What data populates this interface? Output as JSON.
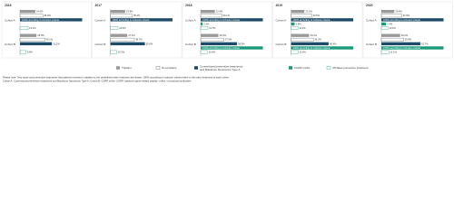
{
  "chart_data": [
    {
      "type": "bar",
      "title": "2016",
      "categories": [
        "Cohort A",
        "Cohort B"
      ],
      "xlim": [
        0,
        100
      ],
      "series": [
        {
          "name": "Triptans",
          "color": "#9a9a9a",
          "values": [
            24.6,
            26.5
          ],
          "value_labels": [
            "24.6%",
            "26.5%"
          ]
        },
        {
          "name": "Non-triptans",
          "color": "#ffffff",
          "values": [
            36.9,
            40.1
          ],
          "value_labels": [
            "36.9%",
            "40.1%"
          ]
        },
        {
          "name": "Conventional preventive treatments and Botulinum Neurotoxin Type A",
          "color": "#1d4a66",
          "values": [
            100,
            51.2
          ],
          "value_labels": [
            "100% according to inclusion criteria",
            "51.2%"
          ]
        },
        {
          "name": "CGRP mAbs",
          "color": "#1a9a7a",
          "values": [
            null,
            null
          ],
          "value_labels": [
            null,
            null
          ]
        },
        {
          "name": "Off-label preventive treatment",
          "color": "#ffffff",
          "values": [
            13.1,
            9.8
          ],
          "value_labels": [
            "13.1%",
            "9.8%"
          ]
        }
      ]
    },
    {
      "type": "bar",
      "title": "2017",
      "categories": [
        "Cohort A",
        "Cohort B"
      ],
      "xlim": [
        0,
        100
      ],
      "series": [
        {
          "name": "Triptans",
          "color": "#9a9a9a",
          "values": [
            23.8,
            27.2
          ],
          "value_labels": [
            "23.8%",
            "27.2%"
          ]
        },
        {
          "name": "Non-triptans",
          "color": "#ffffff",
          "values": [
            35.4,
            38.7
          ],
          "value_labels": [
            "35.4%",
            "38.7%"
          ]
        },
        {
          "name": "Conventional preventive treatments and Botulinum Neurotoxin Type A",
          "color": "#1d4a66",
          "values": [
            100,
            55.6
          ],
          "value_labels": [
            "100% according to inclusion criteria",
            "55.6%"
          ]
        },
        {
          "name": "CGRP mAbs",
          "color": "#1a9a7a",
          "values": [
            null,
            null
          ],
          "value_labels": [
            null,
            null
          ]
        },
        {
          "name": "Off-label preventive treatment",
          "color": "#ffffff",
          "values": [
            12.4,
            10.3
          ],
          "value_labels": [
            "12.4%",
            "10.3%"
          ]
        }
      ]
    },
    {
      "type": "bar",
      "title": "2018",
      "categories": [
        "Cohort A",
        "Cohort B"
      ],
      "xlim": [
        0,
        100
      ],
      "series": [
        {
          "name": "Triptans",
          "color": "#9a9a9a",
          "values": [
            22.9,
            28.4
          ],
          "value_labels": [
            "22.9%",
            "28.4%"
          ]
        },
        {
          "name": "Non-triptans",
          "color": "#ffffff",
          "values": [
            34.1,
            37.5
          ],
          "value_labels": [
            "34.1%",
            "37.5%"
          ]
        },
        {
          "name": "Conventional preventive treatments and Botulinum Neurotoxin Type A",
          "color": "#1d4a66",
          "values": [
            100,
            58.3
          ],
          "value_labels": [
            "100% according to inclusion criteria",
            "58.3%"
          ]
        },
        {
          "name": "CGRP mAbs",
          "color": "#1a9a7a",
          "values": [
            3.2,
            100
          ],
          "value_labels": [
            "3.2%",
            "100% according to inclusion criteria"
          ]
        },
        {
          "name": "Off-label preventive treatment",
          "color": "#ffffff",
          "values": [
            11.7,
            10.9
          ],
          "value_labels": [
            "11.7%",
            "10.9%"
          ]
        }
      ]
    },
    {
      "type": "bar",
      "title": "2019",
      "categories": [
        "Cohort A",
        "Cohort B"
      ],
      "xlim": [
        0,
        100
      ],
      "series": [
        {
          "name": "Triptans",
          "color": "#9a9a9a",
          "values": [
            21.5,
            29.1
          ],
          "value_labels": [
            "21.5%",
            "29.1%"
          ]
        },
        {
          "name": "Non-triptans",
          "color": "#ffffff",
          "values": [
            33.6,
            36.2
          ],
          "value_labels": [
            "33.6%",
            "36.2%"
          ]
        },
        {
          "name": "Conventional preventive treatments and Botulinum Neurotoxin Type A",
          "color": "#1d4a66",
          "values": [
            100,
            60.4
          ],
          "value_labels": [
            "100% according to inclusion criteria",
            "60.4%"
          ]
        },
        {
          "name": "CGRP mAbs",
          "color": "#1a9a7a",
          "values": [
            5.8,
            100
          ],
          "value_labels": [
            "5.8%",
            "100% according to inclusion criteria"
          ]
        },
        {
          "name": "Off-label preventive treatment",
          "color": "#ffffff",
          "values": [
            11.2,
            11.6
          ],
          "value_labels": [
            "11.2%",
            "11.6%"
          ]
        }
      ]
    },
    {
      "type": "bar",
      "title": "2020",
      "categories": [
        "Cohort A",
        "Cohort B"
      ],
      "xlim": [
        0,
        100
      ],
      "series": [
        {
          "name": "Triptans",
          "color": "#9a9a9a",
          "values": [
            20.8,
            30.2
          ],
          "value_labels": [
            "20.8%",
            "30.2%"
          ]
        },
        {
          "name": "Non-triptans",
          "color": "#ffffff",
          "values": [
            32.9,
            35.8
          ],
          "value_labels": [
            "32.9%",
            "35.8%"
          ]
        },
        {
          "name": "Conventional preventive treatments and Botulinum Neurotoxin Type A",
          "color": "#1d4a66",
          "values": [
            100,
            62.7
          ],
          "value_labels": [
            "100% according to inclusion criteria",
            "62.7%"
          ]
        },
        {
          "name": "CGRP mAbs",
          "color": "#1a9a7a",
          "values": [
            7.4,
            100
          ],
          "value_labels": [
            "7.4%",
            "100% according to inclusion criteria"
          ]
        },
        {
          "name": "Off-label preventive treatment",
          "color": "#ffffff",
          "values": [
            10.6,
            12.1
          ],
          "value_labels": [
            "10.6%",
            "12.1%"
          ]
        }
      ]
    }
  ],
  "footnote": [
    "Please note: Only acute and preventive treatments that patients received in addition to the predefined index treatment are shown; 100% according to inclusion criteria refers to the index treatment of each cohort.",
    "Cohort A: Conventional preventive treatments and Botulinum Neurotoxin Type A; Cohort B: CGRP mAbs. CGRP, calcitonin gene-related peptide; mAbs, monoclonal antibodies."
  ]
}
